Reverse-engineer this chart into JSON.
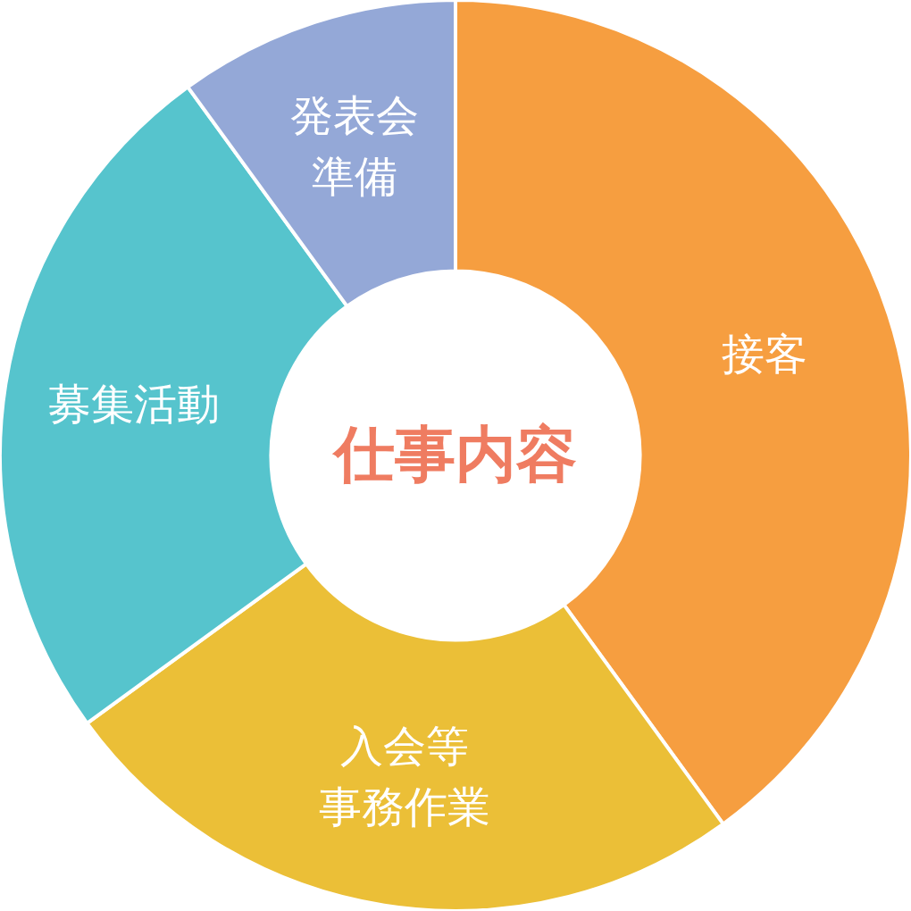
{
  "chart_data": {
    "type": "donut",
    "title": "仕事内容",
    "categories": [
      "接客",
      "入会等事務作業",
      "募集活動",
      "発表会準備"
    ],
    "values": [
      40,
      25,
      25,
      10
    ],
    "colors": [
      "#f69e40",
      "#ebbf37",
      "#56c4cd",
      "#94a8d7"
    ],
    "legend": false
  }
}
